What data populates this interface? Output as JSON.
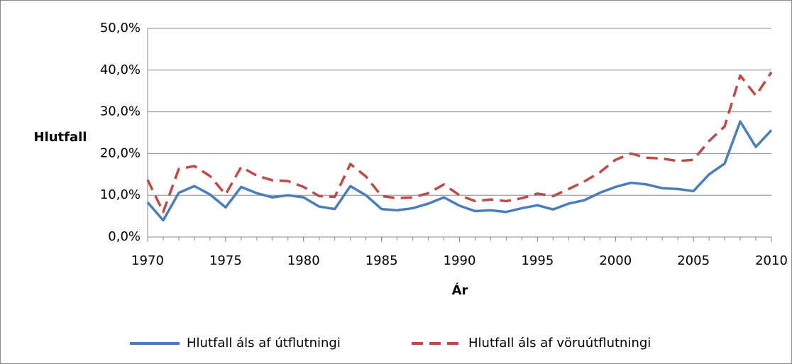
{
  "chart_data": {
    "type": "line",
    "y_label": "Hlutfall",
    "x_label": "Ár",
    "x": [
      1970,
      1971,
      1972,
      1973,
      1974,
      1975,
      1976,
      1977,
      1978,
      1979,
      1980,
      1981,
      1982,
      1983,
      1984,
      1985,
      1986,
      1987,
      1988,
      1989,
      1990,
      1991,
      1992,
      1993,
      1994,
      1995,
      1996,
      1997,
      1998,
      1999,
      2000,
      2001,
      2002,
      2003,
      2004,
      2005,
      2006,
      2007,
      2008,
      2009,
      2010
    ],
    "series": [
      {
        "name": "Hlutfall áls af útflutningi",
        "color": "#4a7ebb",
        "dash": false,
        "values": [
          8.3,
          4.0,
          10.6,
          12.2,
          10.2,
          7.1,
          12.0,
          10.5,
          9.5,
          10.0,
          9.5,
          7.3,
          6.7,
          12.2,
          10.0,
          6.7,
          6.4,
          6.9,
          8.0,
          9.5,
          7.5,
          6.2,
          6.4,
          6.0,
          6.9,
          7.6,
          6.6,
          8.0,
          8.8,
          10.6,
          12.0,
          13.0,
          12.6,
          11.7,
          11.5,
          11.0,
          15.0,
          17.6,
          27.7,
          21.6,
          25.6
        ]
      },
      {
        "name": "Hlutfall áls af vöruútflutningi",
        "color": "#be4b48",
        "dash": true,
        "values": [
          13.7,
          6.0,
          16.3,
          17.0,
          14.6,
          10.2,
          16.8,
          14.7,
          13.6,
          13.4,
          12.0,
          9.8,
          9.6,
          17.5,
          14.5,
          9.8,
          9.3,
          9.5,
          10.5,
          12.6,
          10.0,
          8.6,
          9.0,
          8.6,
          9.3,
          10.4,
          9.8,
          11.5,
          13.3,
          15.5,
          18.5,
          20.0,
          19.0,
          18.8,
          18.2,
          18.5,
          23.0,
          26.5,
          38.7,
          33.9,
          39.5
        ]
      }
    ],
    "xlim": [
      1970,
      2010
    ],
    "xticks": [
      1970,
      1975,
      1980,
      1985,
      1990,
      1995,
      2000,
      2005,
      2010
    ],
    "ylim": [
      0,
      50
    ],
    "yticks": [
      {
        "value": 0,
        "label": "0,0%"
      },
      {
        "value": 10,
        "label": "10,0%"
      },
      {
        "value": 20,
        "label": "20,0%"
      },
      {
        "value": 30,
        "label": "30,0%"
      },
      {
        "value": 40,
        "label": "40,0%"
      },
      {
        "value": 50,
        "label": "50,0%"
      }
    ],
    "grid": true,
    "legend": "bottom"
  }
}
